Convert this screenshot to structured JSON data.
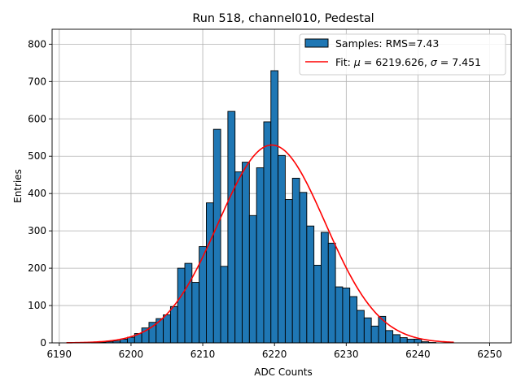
{
  "chart_data": {
    "type": "bar",
    "title": "Run 518, channel010, Pedestal",
    "xlabel": "ADC Counts",
    "ylabel": "Entries",
    "xlim": [
      6189.0,
      6253.0
    ],
    "ylim": [
      0,
      840
    ],
    "xticks": [
      6190,
      6200,
      6210,
      6220,
      6230,
      6240,
      6250
    ],
    "yticks": [
      0,
      100,
      200,
      300,
      400,
      500,
      600,
      700,
      800
    ],
    "grid": true,
    "legend_position": "top-right",
    "bar_color": "#1f77b4",
    "bar_edge_color": "#000000",
    "fit_color": "#ff0000",
    "bin_width": 1,
    "bins_x": [
      6195,
      6196,
      6197,
      6198,
      6199,
      6200,
      6201,
      6202,
      6203,
      6204,
      6205,
      6206,
      6207,
      6208,
      6209,
      6210,
      6211,
      6212,
      6213,
      6214,
      6215,
      6216,
      6217,
      6218,
      6219,
      6220,
      6221,
      6222,
      6223,
      6224,
      6225,
      6226,
      6227,
      6228,
      6229,
      6230,
      6231,
      6232,
      6233,
      6234,
      6235,
      6236,
      6237,
      6238,
      6239,
      6240,
      6241,
      6242
    ],
    "counts": [
      1,
      2,
      3,
      5,
      10,
      15,
      25,
      40,
      55,
      65,
      75,
      97,
      200,
      213,
      162,
      258,
      375,
      572,
      205,
      620,
      458,
      484,
      341,
      469,
      592,
      729,
      502,
      384,
      441,
      403,
      313,
      208,
      296,
      267,
      150,
      147,
      124,
      87,
      67,
      45,
      71,
      33,
      22,
      14,
      10,
      10,
      3,
      1
    ],
    "series": [
      {
        "name_prefix": "Samples: RMS=",
        "name_value": "7.43"
      },
      {
        "name_prefix": "Fit: ",
        "mu": "6219.626",
        "sigma": "7.451",
        "amplitude": 530,
        "range": [
          6191.0,
          6245.0
        ]
      }
    ]
  }
}
